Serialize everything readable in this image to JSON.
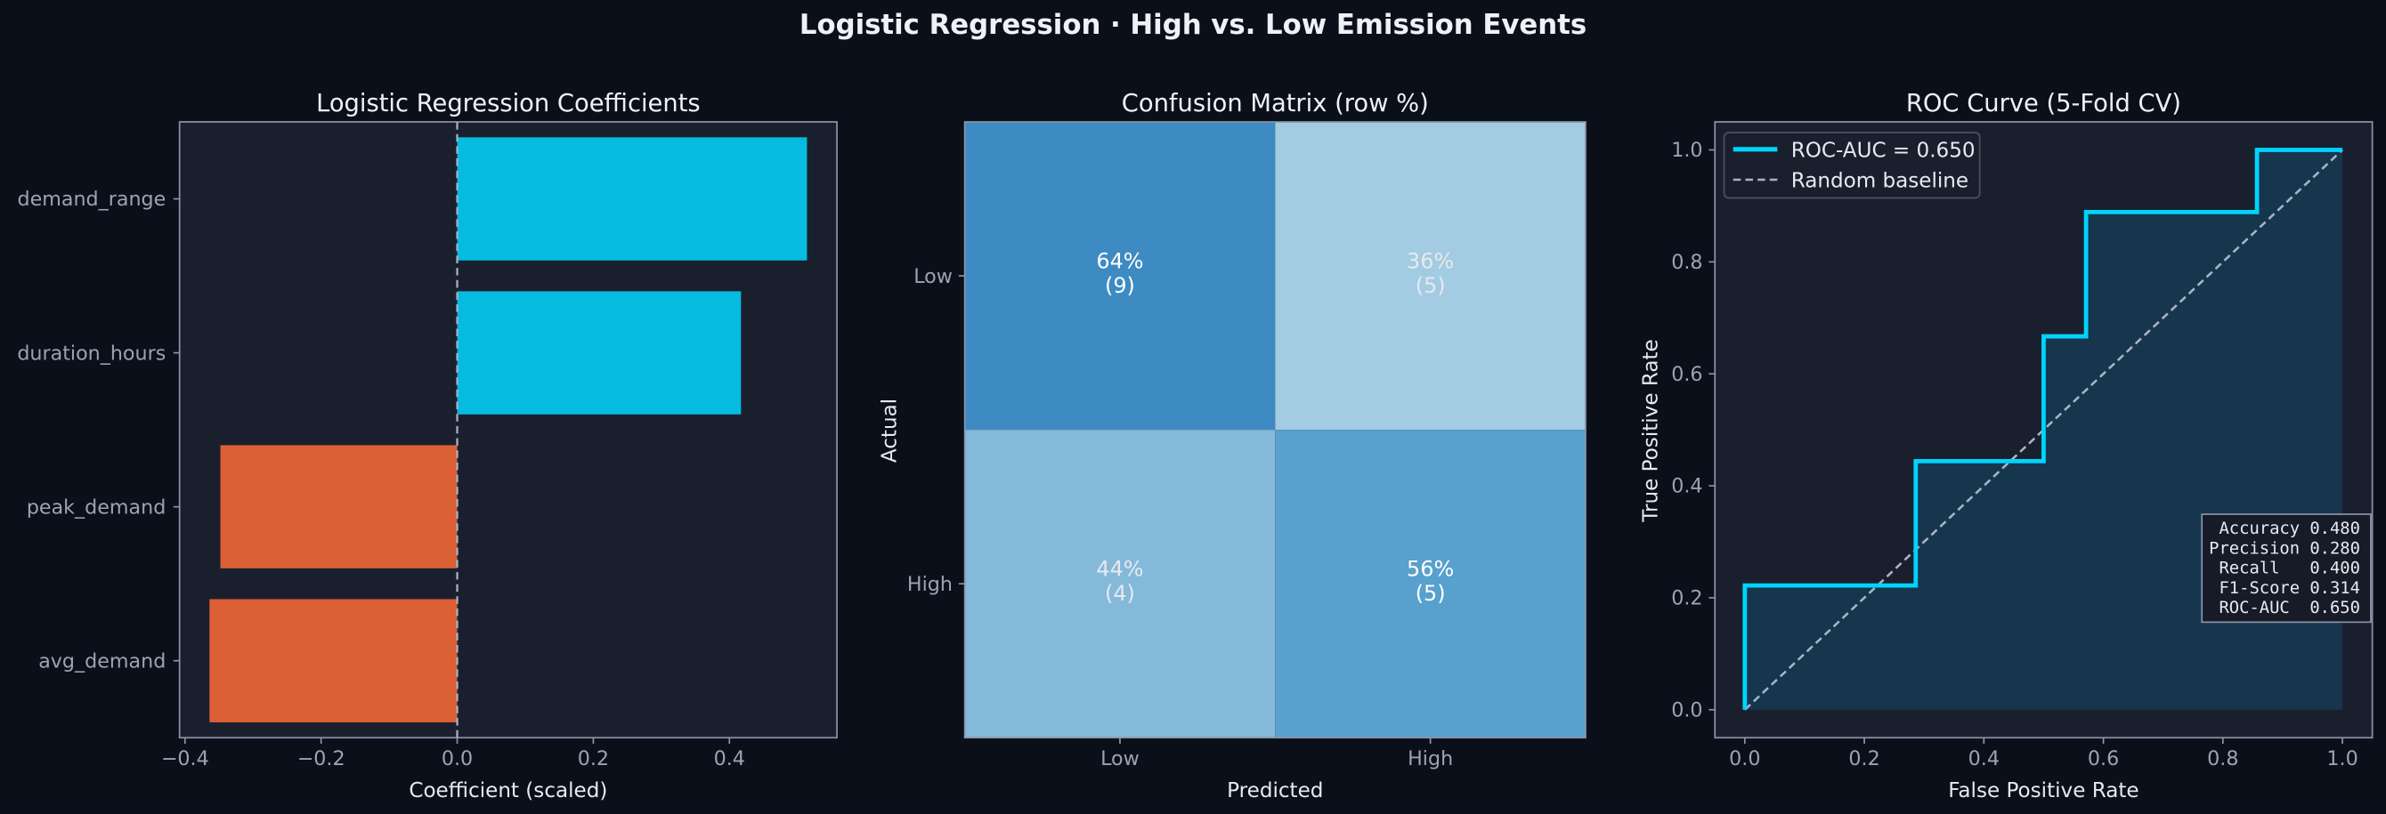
{
  "suptitle": "Logistic Regression  ·  High vs. Low Emission Events",
  "colors": {
    "background": "#0b0f1a",
    "axes_bg": "#1a1f2e",
    "spine": "#8a94a8",
    "positive": "#06bbe0",
    "negative": "#dc6035",
    "roc": "#00d4ff",
    "baseline": "#a9b3c6"
  },
  "chart_data": [
    {
      "type": "bar",
      "orientation": "horizontal",
      "title": "Logistic Regression Coefficients",
      "xlabel": "Coefficient (scaled)",
      "ylabel": "",
      "categories": [
        "demand_range",
        "duration_hours",
        "peak_demand",
        "avg_demand"
      ],
      "values": [
        0.514,
        0.417,
        -0.348,
        -0.364
      ],
      "xlim": [
        -0.408,
        0.558
      ],
      "xticks": [
        "−0.4",
        "−0.2",
        "0.0",
        "0.2",
        "0.4"
      ],
      "xtick_values": [
        -0.4,
        -0.2,
        0.0,
        0.2,
        0.4
      ],
      "reference_line": {
        "x": 0,
        "style": "dashed"
      },
      "grid": false
    },
    {
      "type": "heatmap",
      "title": "Confusion Matrix (row %)",
      "xlabel": "Predicted",
      "ylabel": "Actual",
      "x_categories": [
        "Low",
        "High"
      ],
      "y_categories": [
        "Low",
        "High"
      ],
      "cells": [
        [
          {
            "pct": "64%",
            "count": "(9)",
            "value": 0.64,
            "color": "#3d8bc2",
            "text_color": "#ffffff"
          },
          {
            "pct": "36%",
            "count": "(5)",
            "value": 0.36,
            "color": "#a3cbe2",
            "text_color": "#e6e9ee"
          }
        ],
        [
          {
            "pct": "44%",
            "count": "(4)",
            "value": 0.44,
            "color": "#84b9da",
            "text_color": "#e6e9ee"
          },
          {
            "pct": "56%",
            "count": "(5)",
            "value": 0.56,
            "color": "#58a0cd",
            "text_color": "#ffffff"
          }
        ]
      ]
    },
    {
      "type": "line",
      "title": "ROC Curve (5-Fold CV)",
      "xlabel": "False Positive Rate",
      "ylabel": "True Positive Rate",
      "xlim": [
        -0.05,
        1.05
      ],
      "ylim": [
        -0.05,
        1.05
      ],
      "ticks": [
        "0.0",
        "0.2",
        "0.4",
        "0.6",
        "0.8",
        "1.0"
      ],
      "tick_values": [
        0,
        0.2,
        0.4,
        0.6,
        0.8,
        1.0
      ],
      "series": [
        {
          "name": "ROC-AUC = 0.650",
          "style": "step",
          "filled": true,
          "x": [
            0,
            0,
            0.286,
            0.286,
            0.5,
            0.5,
            0.571,
            0.571,
            0.857,
            0.857,
            1.0
          ],
          "y": [
            0,
            0.222,
            0.222,
            0.444,
            0.444,
            0.667,
            0.667,
            0.889,
            0.889,
            1.0,
            1.0
          ]
        },
        {
          "name": "Random baseline",
          "style": "dashed",
          "x": [
            0,
            1
          ],
          "y": [
            0,
            1
          ]
        }
      ],
      "legend_position": "top-left",
      "metrics": [
        " Accuracy 0.480",
        "Precision 0.280",
        " Recall   0.400",
        " F1-Score 0.314",
        " ROC-AUC  0.650"
      ],
      "metrics_position": "bottom-right",
      "grid": false
    }
  ]
}
